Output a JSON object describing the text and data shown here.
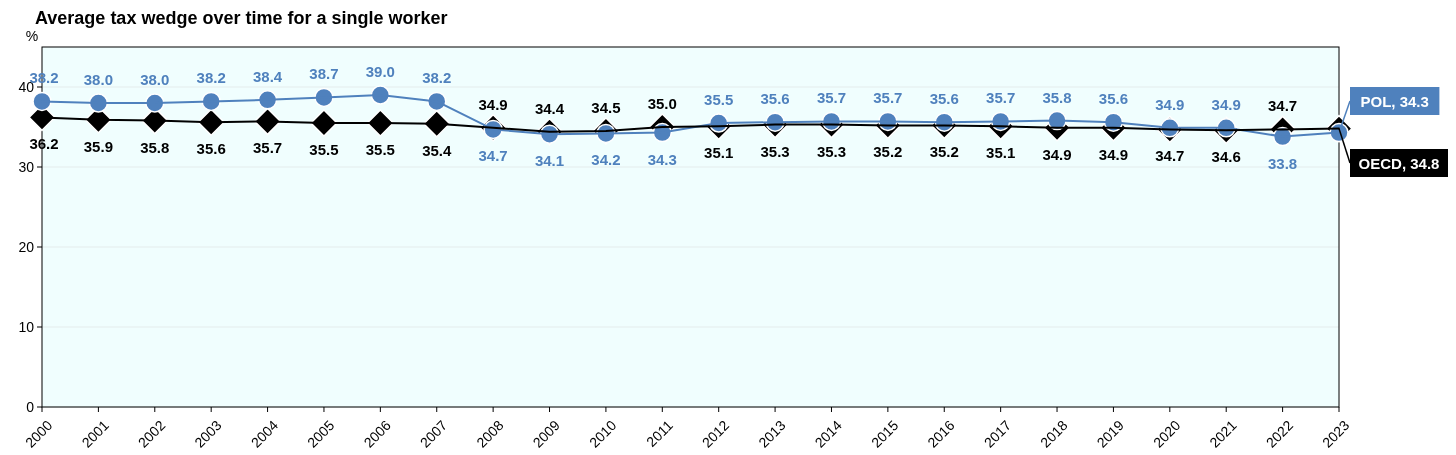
{
  "chart_data": {
    "type": "line",
    "title": "Average tax wedge over time for a single worker",
    "ylabel": "%",
    "categories": [
      "2000",
      "2001",
      "2002",
      "2003",
      "2004",
      "2005",
      "2006",
      "2007",
      "2008",
      "2009",
      "2010",
      "2011",
      "2012",
      "2013",
      "2014",
      "2015",
      "2016",
      "2017",
      "2018",
      "2019",
      "2020",
      "2021",
      "2022",
      "2023"
    ],
    "series": [
      {
        "name": "POL, 34.3",
        "color": "#4f81bd",
        "marker": "circle",
        "values": [
          38.2,
          38.0,
          38.0,
          38.2,
          38.4,
          38.7,
          39.0,
          38.2,
          34.7,
          34.1,
          34.2,
          34.3,
          35.5,
          35.6,
          35.7,
          35.7,
          35.6,
          35.7,
          35.8,
          35.6,
          34.9,
          34.9,
          33.8,
          34.3
        ],
        "value_labels": [
          "38.2",
          "38.0",
          "38.0",
          "38.2",
          "38.4",
          "38.7",
          "39.0",
          "38.2",
          "34.7",
          "34.1",
          "34.2",
          "34.3",
          "35.5",
          "35.6",
          "35.7",
          "35.7",
          "35.6",
          "35.7",
          "35.8",
          "35.6",
          "34.9",
          "34.9",
          "33.8",
          null
        ]
      },
      {
        "name": "OECD, 34.8",
        "color": "#000000",
        "marker": "diamond",
        "values": [
          36.2,
          35.9,
          35.8,
          35.6,
          35.7,
          35.5,
          35.5,
          35.4,
          34.9,
          34.4,
          34.5,
          35.0,
          35.1,
          35.3,
          35.3,
          35.2,
          35.2,
          35.1,
          34.9,
          34.9,
          34.7,
          34.6,
          34.7,
          34.8
        ],
        "value_labels": [
          "36.2",
          "35.9",
          "35.8",
          "35.6",
          "35.7",
          "35.5",
          "35.5",
          "35.4",
          "34.9",
          "34.4",
          "34.5",
          "35.0",
          "35.1",
          "35.3",
          "35.3",
          "35.2",
          "35.2",
          "35.1",
          "34.9",
          "34.9",
          "34.7",
          "34.6",
          "34.7",
          null
        ]
      }
    ],
    "ylim": [
      0,
      45
    ],
    "yticks": [
      0,
      10,
      20,
      30,
      40
    ],
    "grid": "y",
    "legend": false
  }
}
